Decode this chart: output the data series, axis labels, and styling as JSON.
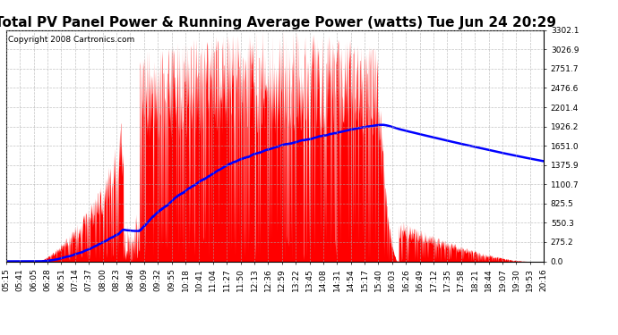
{
  "title": "Total PV Panel Power & Running Average Power (watts) Tue Jun 24 20:29",
  "copyright": "Copyright 2008 Cartronics.com",
  "background_color": "#ffffff",
  "plot_bg_color": "#ffffff",
  "grid_color": "#aaaaaa",
  "bar_color": "#ff0000",
  "line_color": "#0000ff",
  "ymin": 0.0,
  "ymax": 3302.1,
  "yticks": [
    0.0,
    275.2,
    550.3,
    825.5,
    1100.7,
    1375.9,
    1651.0,
    1926.2,
    2201.4,
    2476.6,
    2751.7,
    3026.9,
    3302.1
  ],
  "xtick_labels": [
    "05:15",
    "05:41",
    "06:05",
    "06:28",
    "06:51",
    "07:14",
    "07:37",
    "08:00",
    "08:23",
    "08:46",
    "09:09",
    "09:32",
    "09:55",
    "10:18",
    "10:41",
    "11:04",
    "11:27",
    "11:50",
    "12:13",
    "12:36",
    "12:59",
    "13:22",
    "13:45",
    "14:08",
    "14:31",
    "14:54",
    "15:17",
    "15:40",
    "16:03",
    "16:26",
    "16:49",
    "17:12",
    "17:35",
    "17:58",
    "18:21",
    "18:44",
    "19:07",
    "19:30",
    "19:53",
    "20:16"
  ],
  "title_fontsize": 11,
  "axis_fontsize": 6.5,
  "copyright_fontsize": 6.5,
  "figwidth": 6.9,
  "figheight": 3.75,
  "dpi": 100
}
